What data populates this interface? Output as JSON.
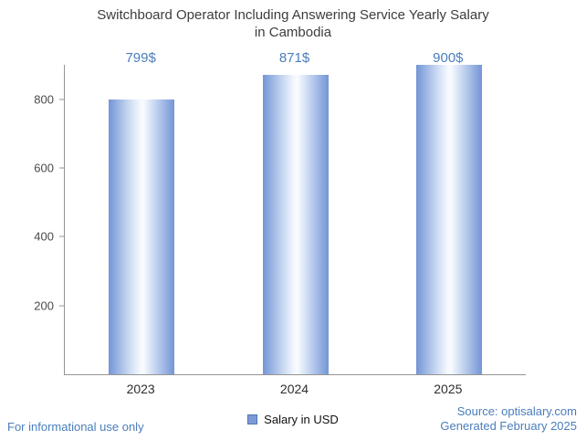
{
  "chart_data": {
    "type": "bar",
    "title": "Switchboard Operator Including Answering Service Yearly Salary in Cambodia",
    "title_lines": [
      "Switchboard Operator Including Answering Service Yearly Salary",
      "in Cambodia"
    ],
    "categories": [
      "2023",
      "2024",
      "2025"
    ],
    "values": [
      799,
      871,
      900
    ],
    "value_labels": [
      "799$",
      "871$",
      "900$"
    ],
    "series": [
      {
        "name": "Salary in USD",
        "values": [
          799,
          871,
          900
        ]
      }
    ],
    "xlabel": "",
    "ylabel": "",
    "ylim": [
      0,
      900
    ],
    "yticks": [
      200,
      400,
      600,
      800
    ],
    "grid": false,
    "legend_position": "bottom"
  },
  "legend": {
    "label": "Salary in USD",
    "swatch_color": "#7b9ad6"
  },
  "footer": {
    "left": "For informational use only",
    "source": "Source: optisalary.com",
    "generated": "Generated February 2025"
  },
  "colors": {
    "bar_edge": "#7495d6",
    "bar_center": "#f8fbfe",
    "value_label_blue": "#4a7dbc",
    "footer_blue": "#4a7dbc",
    "axis_gray": "#949494",
    "title_text": "#3d3d3d",
    "tick_text": "#4a4a4a"
  }
}
